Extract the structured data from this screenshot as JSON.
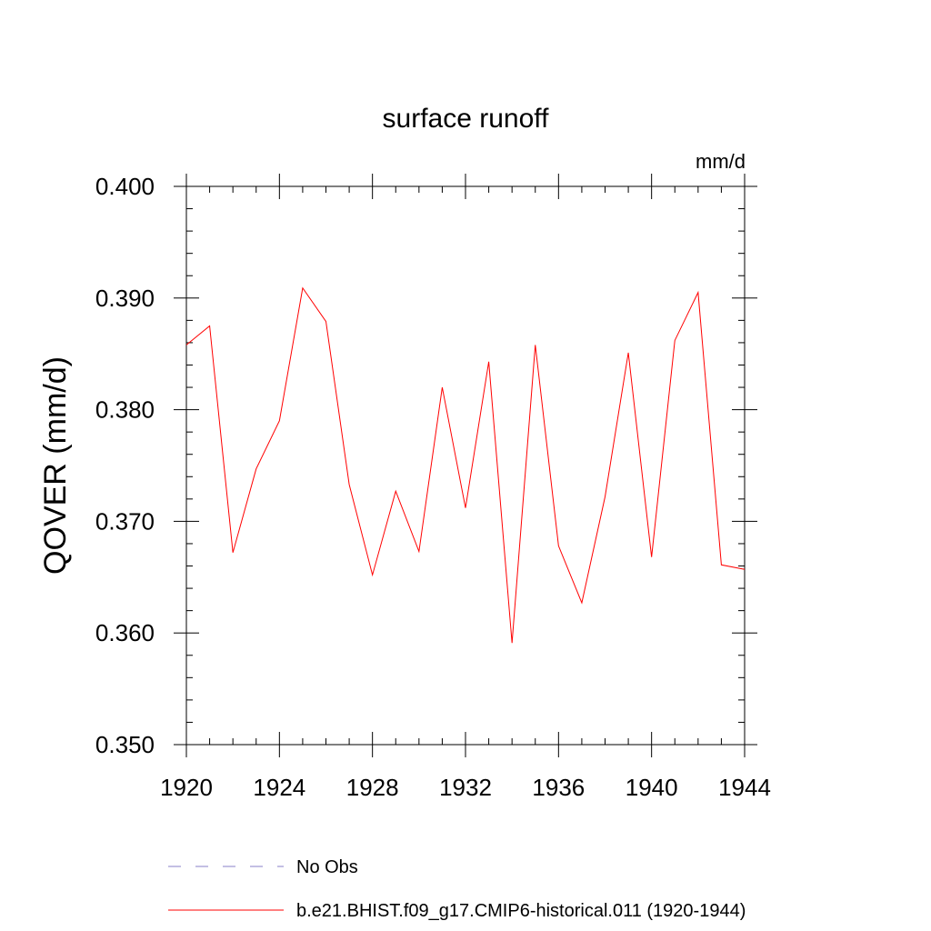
{
  "chart_data": {
    "type": "line",
    "title": "surface runoff",
    "units_label": "mm/d",
    "xlabel": "",
    "ylabel": "QOVER  (mm/d)",
    "xlim": [
      1920,
      1944
    ],
    "ylim": [
      0.35,
      0.4
    ],
    "x_ticks": [
      1920,
      1924,
      1928,
      1932,
      1936,
      1940,
      1944
    ],
    "x_tick_labels": [
      "1920",
      "1924",
      "1928",
      "1932",
      "1936",
      "1940",
      "1944"
    ],
    "y_ticks": [
      0.35,
      0.36,
      0.37,
      0.38,
      0.39,
      0.4
    ],
    "y_tick_labels": [
      "0.350",
      "0.360",
      "0.370",
      "0.380",
      "0.390",
      "0.400"
    ],
    "grid": false,
    "legend_position": "bottom",
    "series": [
      {
        "name": "b.e21.BHIST.f09_g17.CMIP6-historical.011 (1920-1944)",
        "color": "#ff0000",
        "style": "solid",
        "x": [
          1920,
          1921,
          1922,
          1923,
          1924,
          1925,
          1926,
          1927,
          1928,
          1929,
          1930,
          1931,
          1932,
          1933,
          1934,
          1935,
          1936,
          1937,
          1938,
          1939,
          1940,
          1941,
          1942,
          1943,
          1944
        ],
        "values": [
          0.3858,
          0.3875,
          0.3672,
          0.3747,
          0.379,
          0.3909,
          0.3879,
          0.3733,
          0.3652,
          0.3727,
          0.3673,
          0.382,
          0.3712,
          0.3843,
          0.3591,
          0.3858,
          0.3678,
          0.3627,
          0.3722,
          0.3851,
          0.3668,
          0.3862,
          0.3905,
          0.3661,
          0.3657
        ]
      }
    ],
    "legend": [
      {
        "label": "No Obs",
        "color": "#8a7fc8",
        "style": "dashed"
      },
      {
        "label": "b.e21.BHIST.f09_g17.CMIP6-historical.011 (1920-1944)",
        "color": "#ff0000",
        "style": "solid"
      }
    ]
  }
}
